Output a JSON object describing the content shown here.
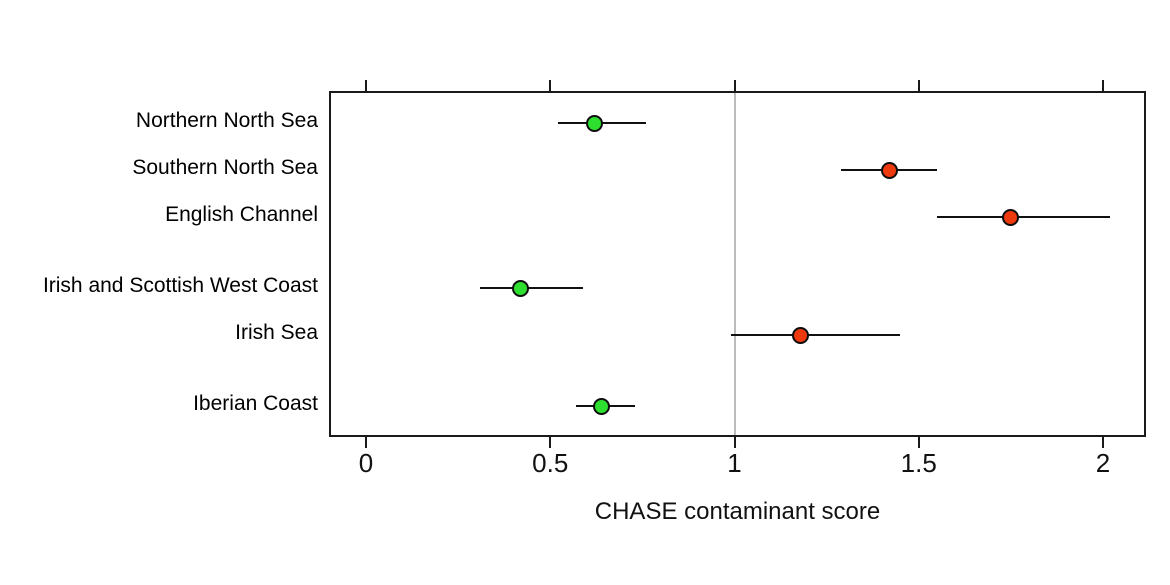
{
  "chart_data": {
    "type": "scatter",
    "subtype": "horizontal-dot-plot-with-error-bars",
    "title": "",
    "xlabel": "CHASE contaminant score",
    "ylabel": "",
    "xlim": [
      -0.1,
      2.11
    ],
    "xticks": [
      {
        "value": 0,
        "label": "0"
      },
      {
        "value": 0.5,
        "label": "0.5"
      },
      {
        "value": 1,
        "label": "1"
      },
      {
        "value": 1.5,
        "label": "1.5"
      },
      {
        "value": 2,
        "label": "2"
      }
    ],
    "reference_line_x": 1,
    "grid": false,
    "frame": true,
    "mirrored_top_ticks": true,
    "legend": null,
    "colors": {
      "good": "#2fdf2f",
      "bad": "#ee390f",
      "reference_line": "#bcbcbc",
      "axis": "#1a1a1a"
    },
    "categories": [
      "Northern North Sea",
      "Southern North Sea",
      "English Channel",
      "Irish and Scottish West Coast",
      "Irish Sea",
      "Iberian Coast"
    ],
    "series": [
      {
        "name": "Northern North Sea",
        "value": 0.62,
        "ci_low": 0.52,
        "ci_high": 0.76,
        "status": "good",
        "group": 1
      },
      {
        "name": "Southern North Sea",
        "value": 1.42,
        "ci_low": 1.29,
        "ci_high": 1.55,
        "status": "bad",
        "group": 1
      },
      {
        "name": "English Channel",
        "value": 1.75,
        "ci_low": 1.55,
        "ci_high": 2.02,
        "status": "bad",
        "group": 1
      },
      {
        "name": "Irish and Scottish West Coast",
        "value": 0.42,
        "ci_low": 0.31,
        "ci_high": 0.59,
        "status": "good",
        "group": 2
      },
      {
        "name": "Irish Sea",
        "value": 1.18,
        "ci_low": 0.99,
        "ci_high": 1.45,
        "status": "bad",
        "group": 2
      },
      {
        "name": "Iberian Coast",
        "value": 0.64,
        "ci_low": 0.57,
        "ci_high": 0.73,
        "status": "good",
        "group": 3
      }
    ]
  }
}
